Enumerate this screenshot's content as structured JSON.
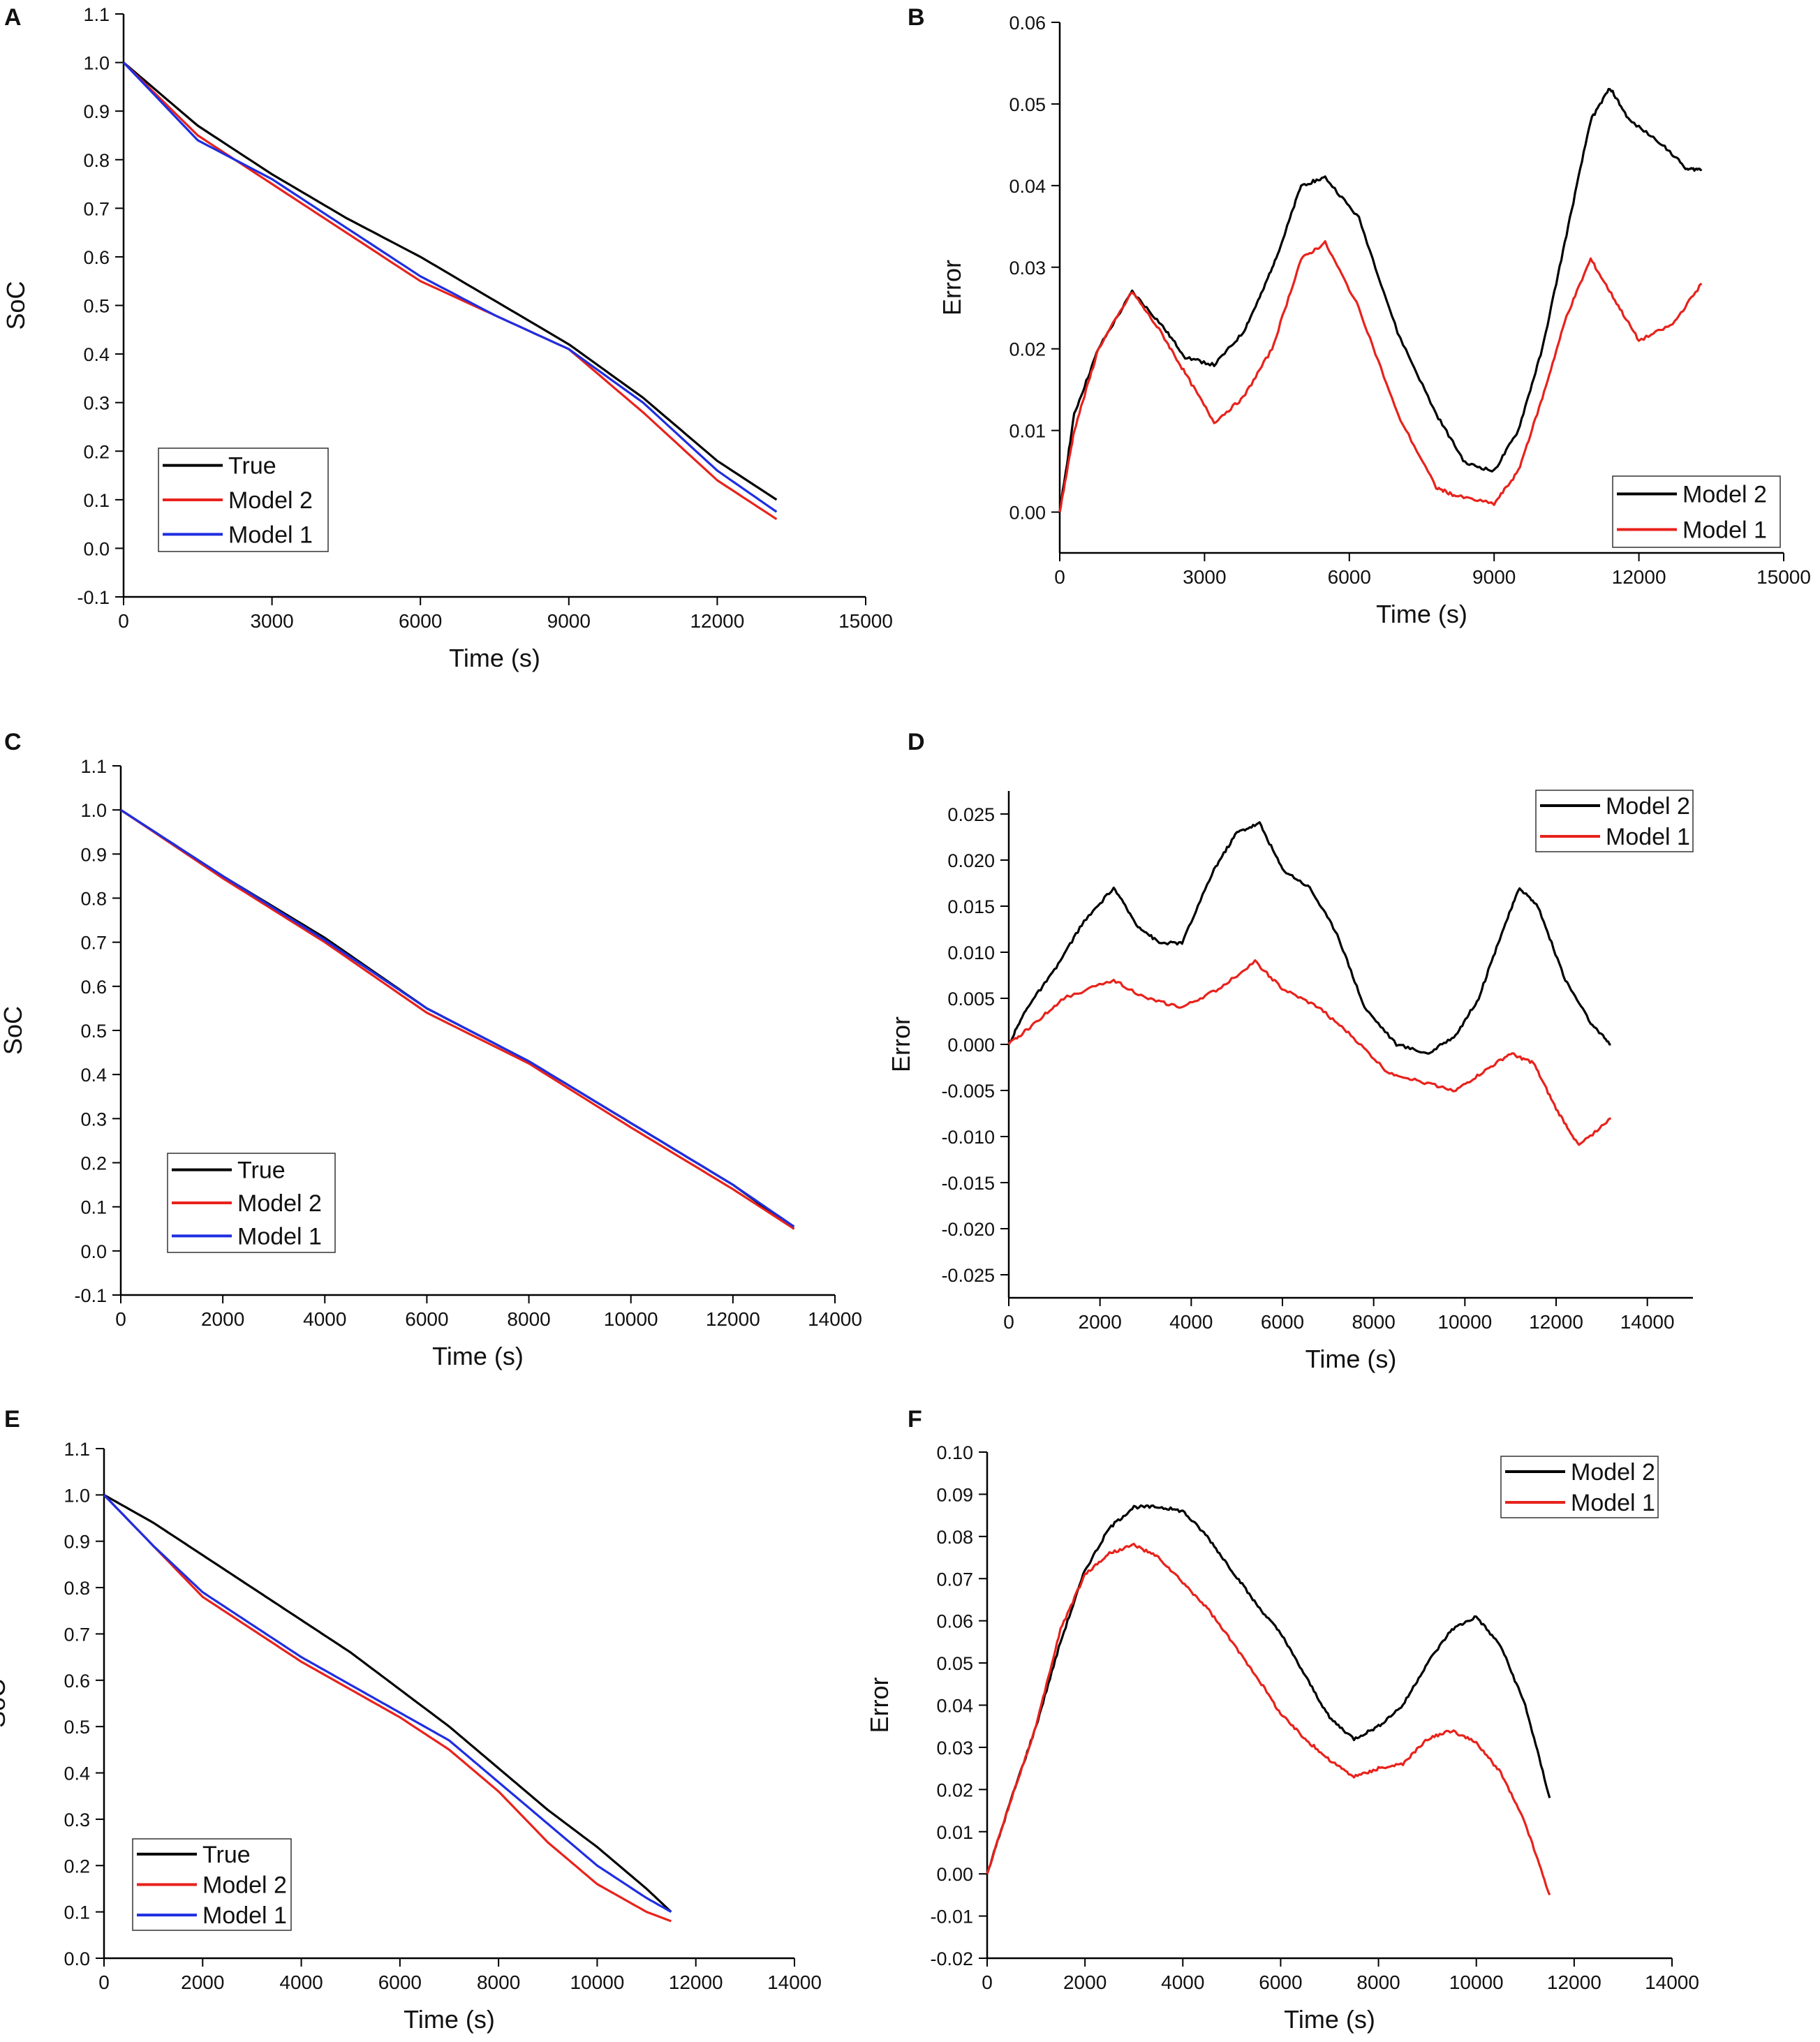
{
  "chart_data": [
    {
      "panel": "A",
      "type": "line",
      "xlabel": "Time (s)",
      "ylabel": "SoC",
      "xlim": [
        0,
        15000
      ],
      "ylim": [
        -0.1,
        1.1
      ],
      "xticks": [
        0,
        3000,
        6000,
        9000,
        12000,
        15000
      ],
      "yticks": [
        -0.1,
        0.0,
        0.1,
        0.2,
        0.3,
        0.4,
        0.5,
        0.6,
        0.7,
        0.8,
        0.9,
        1.0,
        1.1
      ],
      "ydecimals": 1,
      "legend": {
        "position": "bottom-left",
        "entries": [
          "True",
          "Model 2",
          "Model 1"
        ]
      },
      "series": [
        {
          "name": "True",
          "color": "#000000",
          "x": [
            0,
            1500,
            3000,
            4500,
            6000,
            7500,
            9000,
            10500,
            12000,
            13200
          ],
          "y": [
            1.0,
            0.87,
            0.77,
            0.68,
            0.6,
            0.51,
            0.42,
            0.31,
            0.18,
            0.1
          ]
        },
        {
          "name": "Model 2",
          "color": "#e8221c",
          "x": [
            0,
            1500,
            3000,
            4500,
            6000,
            7500,
            9000,
            10500,
            12000,
            13200
          ],
          "y": [
            1.0,
            0.85,
            0.75,
            0.65,
            0.55,
            0.48,
            0.41,
            0.28,
            0.14,
            0.06
          ]
        },
        {
          "name": "Model 1",
          "color": "#1f2ee0",
          "x": [
            0,
            1500,
            3000,
            4500,
            6000,
            7500,
            9000,
            10500,
            12000,
            13200
          ],
          "y": [
            1.0,
            0.84,
            0.76,
            0.66,
            0.56,
            0.48,
            0.41,
            0.3,
            0.16,
            0.075
          ]
        }
      ]
    },
    {
      "panel": "B",
      "type": "line",
      "xlabel": "Time (s)",
      "ylabel": "Error",
      "xlim": [
        0,
        15000
      ],
      "ylim": [
        -0.005,
        0.06
      ],
      "xticks": [
        0,
        3000,
        6000,
        9000,
        12000,
        15000
      ],
      "yticks": [
        0.0,
        0.01,
        0.02,
        0.03,
        0.04,
        0.05,
        0.06
      ],
      "ydecimals": 2,
      "legend": {
        "position": "bottom-right",
        "entries": [
          "Model 2",
          "Model 1"
        ]
      },
      "series": [
        {
          "name": "Model 2",
          "color": "#000000",
          "x": [
            0,
            300,
            800,
            1500,
            2100,
            2600,
            3200,
            3800,
            4200,
            4600,
            5000,
            5500,
            6200,
            7000,
            7800,
            8400,
            9000,
            9500,
            10000,
            10500,
            11000,
            11400,
            11800,
            12500,
            13000,
            13300
          ],
          "y": [
            0.0,
            0.012,
            0.02,
            0.027,
            0.023,
            0.019,
            0.018,
            0.022,
            0.027,
            0.033,
            0.04,
            0.041,
            0.036,
            0.022,
            0.012,
            0.006,
            0.005,
            0.01,
            0.02,
            0.034,
            0.048,
            0.052,
            0.048,
            0.045,
            0.042,
            0.042
          ]
        },
        {
          "name": "Model 1",
          "color": "#e8221c",
          "x": [
            0,
            300,
            800,
            1500,
            2100,
            2600,
            3200,
            3800,
            4400,
            5000,
            5500,
            6200,
            7000,
            7800,
            8200,
            9000,
            9500,
            10000,
            10500,
            11000,
            11500,
            12000,
            12700,
            13300
          ],
          "y": [
            0.0,
            0.01,
            0.02,
            0.027,
            0.022,
            0.017,
            0.011,
            0.014,
            0.02,
            0.031,
            0.033,
            0.025,
            0.012,
            0.003,
            0.002,
            0.001,
            0.005,
            0.014,
            0.024,
            0.031,
            0.026,
            0.021,
            0.023,
            0.028
          ]
        }
      ]
    },
    {
      "panel": "C",
      "type": "line",
      "xlabel": "Time (s)",
      "ylabel": "SoC",
      "xlim": [
        0,
        14000
      ],
      "ylim": [
        -0.1,
        1.1
      ],
      "xticks": [
        0,
        2000,
        4000,
        6000,
        8000,
        10000,
        12000,
        14000
      ],
      "yticks": [
        -0.1,
        0.0,
        0.1,
        0.2,
        0.3,
        0.4,
        0.5,
        0.6,
        0.7,
        0.8,
        0.9,
        1.0,
        1.1
      ],
      "ydecimals": 1,
      "legend": {
        "position": "bottom-left",
        "entries": [
          "True",
          "Model 2",
          "Model 1"
        ]
      },
      "series": [
        {
          "name": "True",
          "color": "#000000",
          "x": [
            0,
            2000,
            4000,
            6000,
            8000,
            10000,
            12000,
            13200
          ],
          "y": [
            1.0,
            0.85,
            0.71,
            0.55,
            0.43,
            0.29,
            0.15,
            0.05
          ]
        },
        {
          "name": "Model 2",
          "color": "#e8221c",
          "x": [
            0,
            2000,
            4000,
            6000,
            8000,
            10000,
            12000,
            13200
          ],
          "y": [
            1.0,
            0.845,
            0.7,
            0.54,
            0.425,
            0.28,
            0.14,
            0.05
          ]
        },
        {
          "name": "Model 1",
          "color": "#1f2ee0",
          "x": [
            0,
            2000,
            4000,
            6000,
            8000,
            10000,
            12000,
            13200
          ],
          "y": [
            1.0,
            0.85,
            0.705,
            0.55,
            0.43,
            0.29,
            0.15,
            0.055
          ]
        }
      ]
    },
    {
      "panel": "D",
      "type": "line",
      "xlabel": "Time (s)",
      "ylabel": "Error",
      "xlim": [
        0,
        15000
      ],
      "ylim": [
        -0.0275,
        0.0275
      ],
      "xticks": [
        0,
        2000,
        4000,
        6000,
        8000,
        10000,
        12000,
        14000
      ],
      "yticks": [
        -0.025,
        -0.02,
        -0.015,
        -0.01,
        -0.005,
        0.0,
        0.005,
        0.01,
        0.015,
        0.02,
        0.025
      ],
      "ydecimals": 3,
      "legend": {
        "position": "top-right",
        "entries": [
          "Model 2",
          "Model 1"
        ]
      },
      "series": [
        {
          "name": "Model 2",
          "color": "#000000",
          "x": [
            0,
            400,
            1000,
            1600,
            2300,
            2800,
            3300,
            3800,
            4500,
            5000,
            5500,
            6000,
            6600,
            7200,
            7800,
            8500,
            9200,
            9800,
            10300,
            10800,
            11200,
            11600,
            12200,
            12800,
            13200
          ],
          "y": [
            0.0,
            0.004,
            0.008,
            0.013,
            0.017,
            0.013,
            0.011,
            0.011,
            0.019,
            0.023,
            0.024,
            0.019,
            0.017,
            0.012,
            0.004,
            0.0,
            -0.001,
            0.001,
            0.005,
            0.012,
            0.017,
            0.015,
            0.007,
            0.002,
            0.0
          ]
        },
        {
          "name": "Model 1",
          "color": "#e8221c",
          "x": [
            0,
            500,
            1200,
            2300,
            3000,
            3800,
            4600,
            5400,
            6000,
            6800,
            7500,
            8300,
            9000,
            9800,
            10400,
            11000,
            11500,
            12000,
            12500,
            13200
          ],
          "y": [
            0.0,
            0.002,
            0.005,
            0.007,
            0.005,
            0.004,
            0.006,
            0.009,
            0.006,
            0.004,
            0.001,
            -0.003,
            -0.004,
            -0.005,
            -0.003,
            -0.001,
            -0.002,
            -0.007,
            -0.011,
            -0.008
          ]
        }
      ]
    },
    {
      "panel": "E",
      "type": "line",
      "xlabel": "Time (s)",
      "ylabel": "SoC",
      "xlim": [
        0,
        14000
      ],
      "ylim": [
        0.0,
        1.1
      ],
      "xticks": [
        0,
        2000,
        4000,
        6000,
        8000,
        10000,
        12000,
        14000
      ],
      "yticks": [
        0.0,
        0.1,
        0.2,
        0.3,
        0.4,
        0.5,
        0.6,
        0.7,
        0.8,
        0.9,
        1.0,
        1.1
      ],
      "ydecimals": 1,
      "legend": {
        "position": "bottom-left",
        "entries": [
          "True",
          "Model 2",
          "Model 1"
        ]
      },
      "series": [
        {
          "name": "True",
          "color": "#000000",
          "x": [
            0,
            1000,
            2000,
            3000,
            4000,
            5000,
            6000,
            7000,
            8000,
            9000,
            10000,
            11000,
            11500
          ],
          "y": [
            1.0,
            0.94,
            0.87,
            0.8,
            0.73,
            0.66,
            0.58,
            0.5,
            0.41,
            0.32,
            0.24,
            0.15,
            0.1
          ]
        },
        {
          "name": "Model 2",
          "color": "#e8221c",
          "x": [
            0,
            1000,
            2000,
            3000,
            4000,
            5000,
            6000,
            7000,
            8000,
            9000,
            10000,
            11000,
            11500
          ],
          "y": [
            1.0,
            0.89,
            0.78,
            0.71,
            0.64,
            0.58,
            0.52,
            0.45,
            0.36,
            0.25,
            0.16,
            0.1,
            0.08
          ]
        },
        {
          "name": "Model 1",
          "color": "#1f2ee0",
          "x": [
            0,
            1000,
            2000,
            3000,
            4000,
            5000,
            6000,
            7000,
            8000,
            9000,
            10000,
            11000,
            11500
          ],
          "y": [
            1.0,
            0.89,
            0.79,
            0.72,
            0.65,
            0.59,
            0.53,
            0.47,
            0.38,
            0.29,
            0.2,
            0.13,
            0.1
          ]
        }
      ]
    },
    {
      "panel": "F",
      "type": "line",
      "xlabel": "Time (s)",
      "ylabel": "Error",
      "xlim": [
        0,
        14000
      ],
      "ylim": [
        -0.02,
        0.1
      ],
      "xticks": [
        0,
        2000,
        4000,
        6000,
        8000,
        10000,
        12000,
        14000
      ],
      "yticks": [
        -0.02,
        -0.01,
        0.0,
        0.01,
        0.02,
        0.03,
        0.04,
        0.05,
        0.06,
        0.07,
        0.08,
        0.09,
        0.1
      ],
      "ydecimals": 2,
      "legend": {
        "position": "top-right",
        "entries": [
          "Model 2",
          "Model 1"
        ]
      },
      "series": [
        {
          "name": "Model 2",
          "color": "#000000",
          "x": [
            0,
            500,
            1000,
            1500,
            2000,
            2500,
            3000,
            3500,
            4000,
            4500,
            5000,
            5500,
            6000,
            6500,
            7000,
            7500,
            8000,
            8500,
            9000,
            9500,
            10000,
            10500,
            11000,
            11500
          ],
          "y": [
            0.0,
            0.018,
            0.035,
            0.055,
            0.072,
            0.082,
            0.087,
            0.087,
            0.086,
            0.08,
            0.072,
            0.064,
            0.057,
            0.047,
            0.037,
            0.032,
            0.035,
            0.04,
            0.05,
            0.058,
            0.061,
            0.054,
            0.04,
            0.018
          ]
        },
        {
          "name": "Model 1",
          "color": "#e8221c",
          "x": [
            0,
            500,
            1000,
            1500,
            2000,
            2500,
            3000,
            3500,
            4000,
            4500,
            5000,
            5500,
            6000,
            6500,
            7000,
            7500,
            8000,
            8500,
            9000,
            9500,
            10000,
            10500,
            11000,
            11500
          ],
          "y": [
            0.0,
            0.018,
            0.035,
            0.058,
            0.071,
            0.076,
            0.078,
            0.075,
            0.069,
            0.063,
            0.055,
            0.047,
            0.038,
            0.032,
            0.027,
            0.023,
            0.025,
            0.026,
            0.032,
            0.034,
            0.031,
            0.024,
            0.012,
            -0.005
          ]
        }
      ]
    }
  ]
}
